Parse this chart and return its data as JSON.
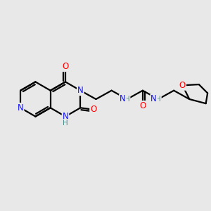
{
  "background_color": "#e8e8e8",
  "bond_color": "#000000",
  "atom_colors": {
    "N": "#1414ff",
    "O": "#ff0000",
    "H": "#4a9090",
    "C": "#000000"
  },
  "bond_width": 1.6,
  "font_size_atom": 8.5,
  "font_size_H": 7.5,
  "bg": "#e8e8e8"
}
